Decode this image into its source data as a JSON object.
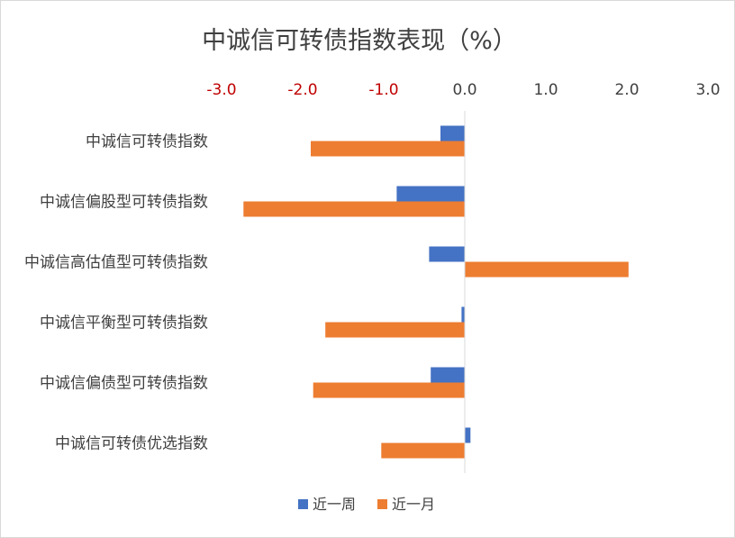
{
  "chart_data": {
    "type": "bar",
    "orientation": "horizontal",
    "title": "中诚信可转债指数表现（%）",
    "xlim": [
      -3.0,
      3.0
    ],
    "x_ticks": [
      "-3.0",
      "-2.0",
      "-1.0",
      "0.0",
      "1.0",
      "2.0",
      "3.0"
    ],
    "x_axis_position": "top",
    "negative_tick_color": "#c00000",
    "positive_tick_color": "#404040",
    "grid": false,
    "legend_position": "bottom",
    "categories": [
      "中诚信可转债指数",
      "中诚信偏股型可转债指数",
      "中诚信高估值型可转债指数",
      "中诚信平衡型可转债指数",
      "中诚信偏债型可转债指数",
      "中诚信可转债优选指数"
    ],
    "series": [
      {
        "name": "近一周",
        "color": "#4472c4",
        "values": [
          -0.3,
          -0.84,
          -0.44,
          -0.04,
          -0.42,
          0.07
        ]
      },
      {
        "name": "近一月",
        "color": "#ed7d31",
        "values": [
          -1.9,
          -2.73,
          2.02,
          -1.72,
          -1.87,
          -1.03
        ]
      }
    ]
  }
}
